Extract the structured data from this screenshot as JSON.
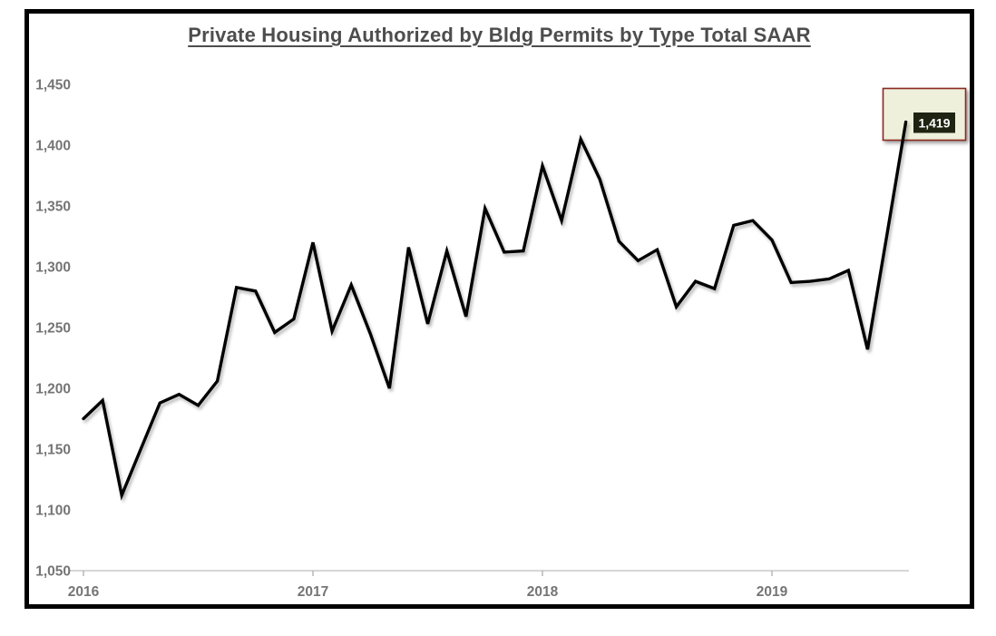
{
  "window": {
    "background_color": "#ffffff",
    "frame_border_color": "#000000"
  },
  "chart_data": {
    "type": "line",
    "title": "Private Housing Authorized by Bldg Permits by Type Total SAAR",
    "x": [
      "2016-01",
      "2016-02",
      "2016-03",
      "2016-04",
      "2016-05",
      "2016-06",
      "2016-07",
      "2016-08",
      "2016-09",
      "2016-10",
      "2016-11",
      "2016-12",
      "2017-01",
      "2017-02",
      "2017-03",
      "2017-04",
      "2017-05",
      "2017-06",
      "2017-07",
      "2017-08",
      "2017-09",
      "2017-10",
      "2017-11",
      "2017-12",
      "2018-01",
      "2018-02",
      "2018-03",
      "2018-04",
      "2018-05",
      "2018-06",
      "2018-07",
      "2018-08",
      "2018-09",
      "2018-10",
      "2018-11",
      "2018-12",
      "2019-01",
      "2019-02",
      "2019-03",
      "2019-04",
      "2019-05",
      "2019-06",
      "2019-07",
      "2019-08"
    ],
    "values": [
      1175,
      1190,
      1112,
      1150,
      1188,
      1195,
      1186,
      1206,
      1283,
      1280,
      1246,
      1257,
      1320,
      1247,
      1285,
      1245,
      1200,
      1316,
      1253,
      1313,
      1259,
      1348,
      1312,
      1313,
      1383,
      1338,
      1405,
      1372,
      1321,
      1305,
      1314,
      1267,
      1288,
      1282,
      1334,
      1338,
      1322,
      1287,
      1288,
      1290,
      1297,
      1232,
      1325,
      1419
    ],
    "x_tick_labels": [
      "2016",
      "2017",
      "2018",
      "2019"
    ],
    "x_tick_month_index": [
      0,
      12,
      24,
      36
    ],
    "y_tick_labels": [
      "1,050",
      "1,100",
      "1,150",
      "1,200",
      "1,250",
      "1,300",
      "1,350",
      "1,400",
      "1,450"
    ],
    "y_tick_values": [
      1050,
      1100,
      1150,
      1200,
      1250,
      1300,
      1350,
      1400,
      1450
    ],
    "ylim": [
      1050,
      1450
    ],
    "grid": "off",
    "legend": "none",
    "line_color": "#000000",
    "axis_color": "#c9c9c9",
    "tick_color": "#b3b3b3",
    "tick_label_color": "#757575",
    "title_color": "#4d4d4d",
    "annotation": {
      "label": "1,419",
      "attached_to": "2019-08",
      "box_fill": "#eef0dc",
      "box_border": "#8b2a21",
      "label_bg": "#1e2312",
      "label_text_color": "#ffffff"
    }
  }
}
